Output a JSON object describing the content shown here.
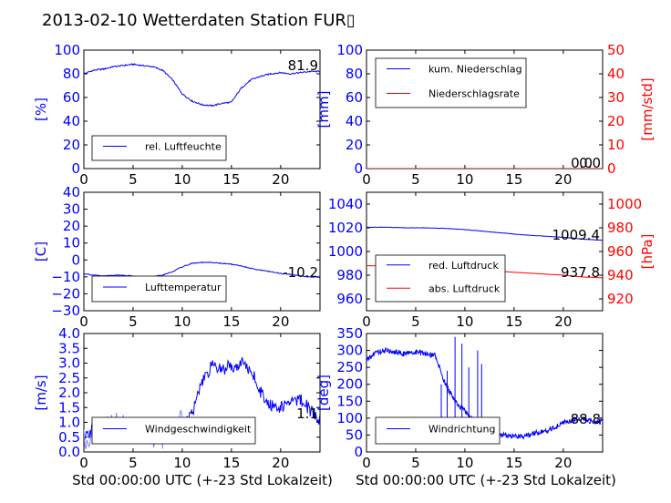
{
  "title": "2013-02-10 Wetterdaten Station FUR▯",
  "xlabel": "Std 00:00:00 UTC (+-23 Std Lokalzeit)",
  "colors": {
    "blue": "#0000ff",
    "red": "#ff0000",
    "lightblue": "#8080ff"
  },
  "chart_data": [
    {
      "type": "line",
      "ylabel": "[%]",
      "xlim": [
        0,
        24
      ],
      "ylim": [
        0,
        100
      ],
      "xticks": [
        "0",
        "5",
        "10",
        "15",
        "20"
      ],
      "yticks": [
        "0",
        "20",
        "40",
        "60",
        "80",
        "100"
      ],
      "current_value": "81.9",
      "series": [
        {
          "name": "rel. Luftfeuchte",
          "color": "#0000ff",
          "x": [
            0,
            1,
            2,
            3,
            4,
            5,
            6,
            7,
            8,
            9,
            10,
            11,
            12,
            13,
            14,
            15,
            16,
            17,
            18,
            19,
            20,
            21,
            22,
            23,
            24
          ],
          "y": [
            80,
            83,
            84,
            86,
            87,
            88,
            87,
            86,
            83,
            75,
            63,
            57,
            54,
            53,
            55,
            56,
            68,
            75,
            78,
            80,
            81,
            80,
            81,
            82,
            81.9
          ]
        }
      ]
    },
    {
      "type": "line",
      "ylabel": "[mm]",
      "ylabel_right": "[mm/std]",
      "xlim": [
        0,
        24
      ],
      "ylim": [
        0,
        100
      ],
      "ylim_right": [
        0,
        50
      ],
      "xticks": [
        "0",
        "5",
        "10",
        "15",
        "20"
      ],
      "yticks": [
        "0",
        "20",
        "40",
        "60",
        "80",
        "100"
      ],
      "yticks_right": [
        "0",
        "10",
        "20",
        "30",
        "40",
        "50"
      ],
      "current_value": "0.0",
      "current_value_right": "0.0",
      "series": [
        {
          "name": "kum. Niederschlag",
          "color": "#0000ff",
          "x": [
            0,
            24
          ],
          "y": [
            0,
            0
          ]
        },
        {
          "name": "Niederschlagsrate",
          "color": "#ff0000",
          "x": [
            0,
            24
          ],
          "y": [
            0,
            0
          ]
        }
      ]
    },
    {
      "type": "line",
      "ylabel": "[C]",
      "xlim": [
        0,
        24
      ],
      "ylim": [
        -30,
        40
      ],
      "xticks": [
        "0",
        "5",
        "10",
        "15",
        "20"
      ],
      "yticks": [
        "−30",
        "−20",
        "−10",
        "0",
        "10",
        "20",
        "30",
        "40"
      ],
      "current_value": "-10.2",
      "series": [
        {
          "name": "Lufttemperatur",
          "color": "#0000ff",
          "x": [
            0,
            1,
            2,
            3,
            4,
            5,
            6,
            7,
            8,
            9,
            10,
            11,
            12,
            13,
            14,
            15,
            16,
            17,
            18,
            19,
            20,
            21,
            22,
            23,
            24
          ],
          "y": [
            -8,
            -9,
            -9.5,
            -9,
            -9,
            -9.5,
            -10.5,
            -10,
            -9,
            -7,
            -4,
            -2,
            -1.5,
            -1.5,
            -2,
            -2.5,
            -3.5,
            -5,
            -6,
            -7,
            -8,
            -8.5,
            -9.5,
            -10,
            -10.2
          ]
        }
      ]
    },
    {
      "type": "line",
      "ylabel_right": "[hPa]",
      "xlim": [
        0,
        24
      ],
      "ylim": [
        950,
        1050
      ],
      "ylim_right": [
        910,
        1010
      ],
      "xticks": [
        "0",
        "5",
        "10",
        "15",
        "20"
      ],
      "yticks": [
        "960",
        "980",
        "1000",
        "1020",
        "1040"
      ],
      "yticks_right": [
        "920",
        "940",
        "960",
        "980",
        "1000"
      ],
      "current_value": "1009.4",
      "current_value_right": "937.8",
      "series": [
        {
          "name": "red. Luftdruck",
          "color": "#0000ff",
          "x": [
            0,
            2,
            4,
            6,
            8,
            10,
            12,
            14,
            16,
            18,
            20,
            22,
            24
          ],
          "y": [
            1020.5,
            1020.5,
            1020,
            1020,
            1019.5,
            1018.5,
            1017,
            1015.5,
            1014,
            1013,
            1012,
            1010.5,
            1009.4
          ]
        },
        {
          "name": "abs. Luftdruck",
          "color": "#ff0000",
          "x": [
            0,
            2,
            4,
            6,
            8,
            10,
            12,
            14,
            16,
            18,
            20,
            22,
            24
          ],
          "y": [
            948,
            948,
            947.5,
            947,
            946.5,
            945.5,
            944.5,
            943,
            942,
            941,
            940,
            938.5,
            937.8
          ]
        }
      ]
    },
    {
      "type": "line",
      "ylabel": "[m/s]",
      "xlim": [
        0,
        24
      ],
      "ylim": [
        0,
        4
      ],
      "xticks": [
        "0",
        "5",
        "10",
        "15",
        "20"
      ],
      "yticks": [
        "0.0",
        "0.5",
        "1.0",
        "1.5",
        "2.0",
        "2.5",
        "3.0",
        "3.5",
        "4.0"
      ],
      "current_value": "1.1",
      "series": [
        {
          "name": "Windgeschwindigkeit",
          "color": "#0000ff",
          "x": [
            0,
            1,
            2,
            3,
            4,
            5,
            6,
            7,
            8,
            9,
            10,
            11,
            12,
            13,
            14,
            15,
            16,
            17,
            18,
            19,
            20,
            21,
            22,
            23,
            24
          ],
          "y": [
            0.4,
            0.8,
            0.9,
            1.0,
            0.8,
            0.9,
            0.8,
            0.6,
            0.5,
            0.7,
            0.9,
            1.3,
            2.3,
            2.9,
            2.8,
            2.9,
            3.0,
            2.8,
            2.0,
            1.6,
            1.5,
            1.7,
            1.8,
            1.4,
            1.1
          ]
        }
      ]
    },
    {
      "type": "line",
      "ylabel": "[deg]",
      "xlim": [
        0,
        24
      ],
      "ylim": [
        0,
        350
      ],
      "xticks": [
        "0",
        "5",
        "10",
        "15",
        "20"
      ],
      "yticks": [
        "0",
        "50",
        "100",
        "150",
        "200",
        "250",
        "300",
        "350"
      ],
      "current_value": "88.8",
      "series": [
        {
          "name": "Windrichtung",
          "color": "#0000ff",
          "x": [
            0,
            1,
            2,
            3,
            4,
            5,
            6,
            7,
            8,
            9,
            10,
            11,
            12,
            13,
            14,
            15,
            16,
            17,
            18,
            19,
            20,
            21,
            22,
            23,
            24
          ],
          "y": [
            270,
            295,
            300,
            295,
            290,
            295,
            290,
            285,
            200,
            150,
            120,
            90,
            60,
            55,
            50,
            48,
            45,
            55,
            60,
            70,
            85,
            95,
            100,
            92,
            88.8
          ]
        }
      ]
    }
  ]
}
